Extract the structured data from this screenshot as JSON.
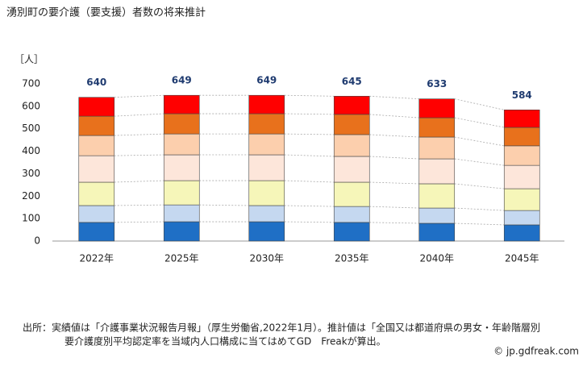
{
  "chart_data": {
    "type": "stacked_bar",
    "title": "湧別町の要介護（要支援）者数の将来推計",
    "y_unit": "［人］",
    "categories": [
      "2022年",
      "2025年",
      "2030年",
      "2035年",
      "2040年",
      "2045年"
    ],
    "series": [
      {
        "color": "#1f6fc5",
        "values": [
          83,
          86,
          86,
          83,
          79,
          72
        ]
      },
      {
        "color": "#c5d8f0",
        "values": [
          75,
          75,
          72,
          71,
          68,
          64
        ]
      },
      {
        "color": "#f6f6b9",
        "values": [
          104,
          108,
          111,
          108,
          108,
          97
        ]
      },
      {
        "color": "#fde6da",
        "values": [
          118,
          115,
          115,
          115,
          111,
          104
        ]
      },
      {
        "color": "#fccfad",
        "values": [
          90,
          93,
          93,
          97,
          97,
          87
        ]
      },
      {
        "color": "#e8711c",
        "values": [
          86,
          90,
          90,
          90,
          86,
          82
        ]
      },
      {
        "color": "#ff0000",
        "values": [
          84,
          82,
          82,
          81,
          84,
          78
        ]
      }
    ],
    "totals": [
      640,
      649,
      649,
      645,
      633,
      584
    ],
    "ylim": [
      0,
      700
    ],
    "yticks": [
      0,
      100,
      200,
      300,
      400,
      500,
      600,
      700
    ],
    "notes": [
      "出所：実績値は「介護事業状況報告月報」（厚生労働省,2022年1月）。推計値は「全国又は都道府県の男女・年齢階層別",
      "要介護度別平均認定率を当域内人口構成に当てはめてGD　Freakが算出。"
    ],
    "credit": "© jp.gdfreak.com"
  }
}
